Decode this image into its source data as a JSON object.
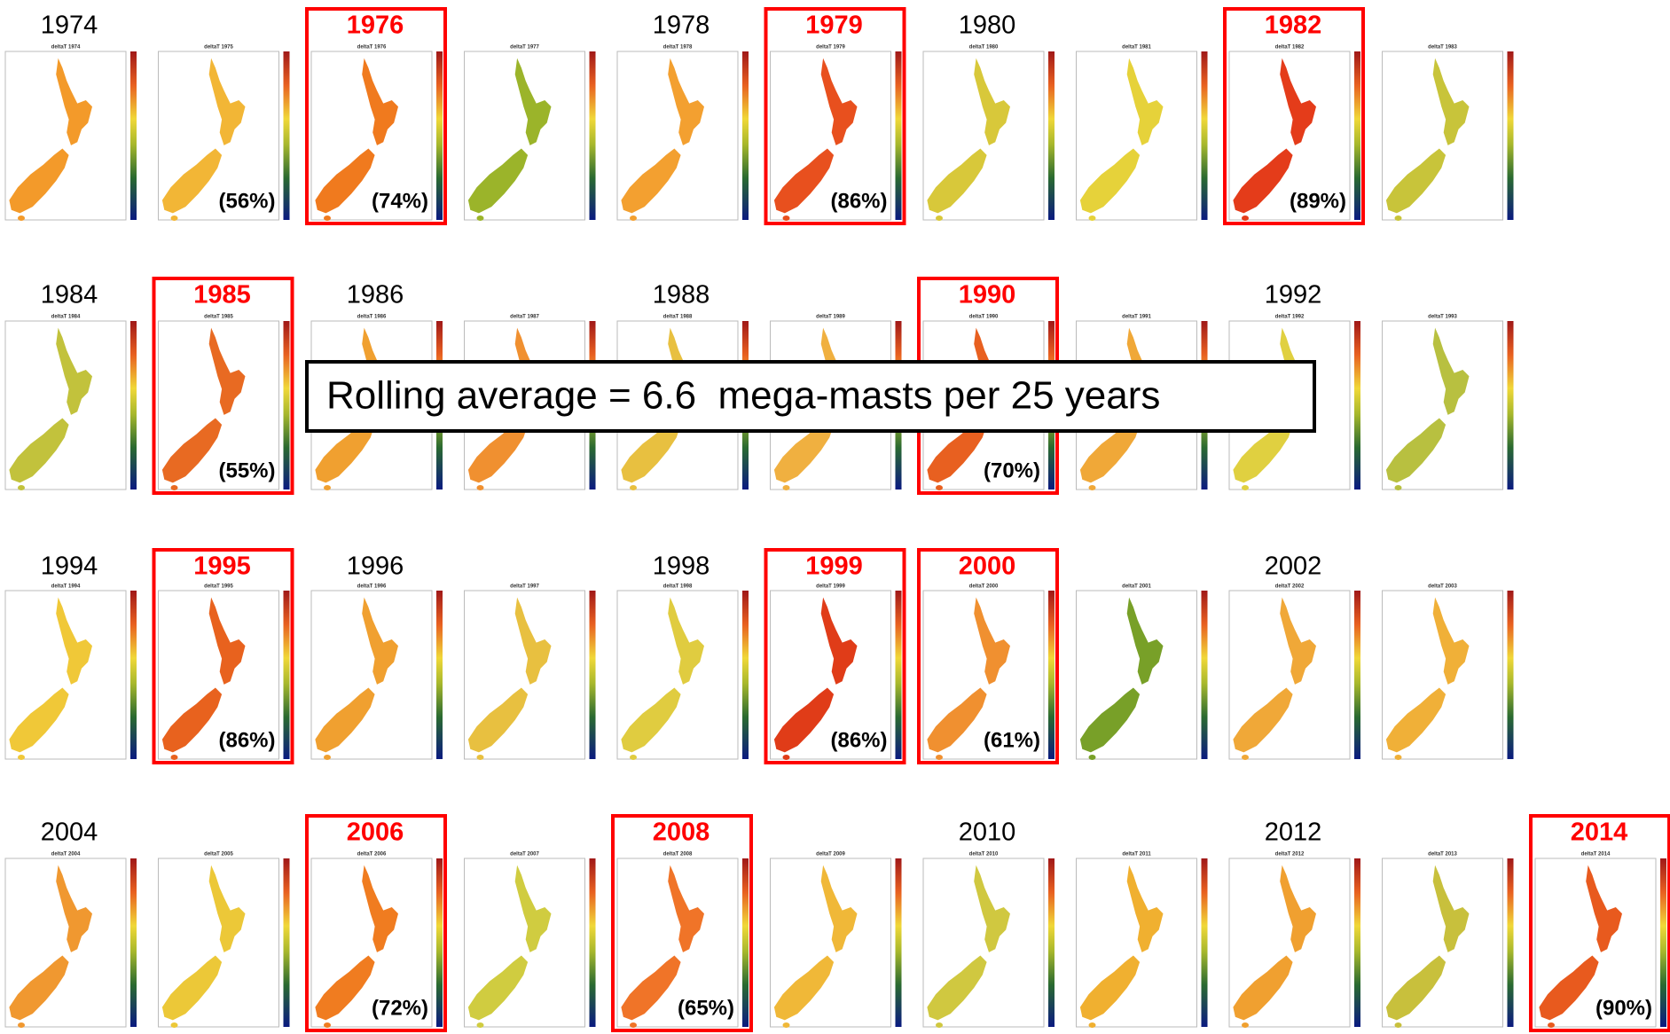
{
  "rows": [
    {
      "panels": [
        {
          "label": "1974",
          "subtitle": "deltaT 1974",
          "color": "#f39a2a"
        },
        {
          "subtitle": "deltaT 1975",
          "color": "#f2b636",
          "percent": "(56%)"
        },
        {
          "label": "1976",
          "highlighted": true,
          "subtitle": "deltaT 1976",
          "color": "#f07a1e",
          "percent": "(74%)"
        },
        {
          "subtitle": "deltaT 1977",
          "color": "#9bb42a"
        },
        {
          "label": "1978",
          "subtitle": "deltaT 1978",
          "color": "#f3a030"
        },
        {
          "label": "1979",
          "highlighted": true,
          "subtitle": "deltaT 1979",
          "color": "#e8501e",
          "percent": "(86%)"
        },
        {
          "label": "1980",
          "subtitle": "deltaT 1980",
          "color": "#d8c83a"
        },
        {
          "subtitle": "deltaT 1981",
          "color": "#e6d23a"
        },
        {
          "label": "1982",
          "highlighted": true,
          "subtitle": "deltaT 1982",
          "color": "#e43c1a",
          "percent": "(89%)"
        },
        {
          "subtitle": "deltaT 1983",
          "color": "#c8c43a"
        }
      ]
    },
    {
      "panels": [
        {
          "label": "1984",
          "subtitle": "deltaT 1984",
          "color": "#c2c23c"
        },
        {
          "label": "1985",
          "highlighted": true,
          "subtitle": "deltaT 1985",
          "color": "#e86a22",
          "percent": "(55%)"
        },
        {
          "label": "1986",
          "subtitle": "deltaT 1986",
          "color": "#f0a030"
        },
        {
          "subtitle": "deltaT 1987",
          "color": "#f09030"
        },
        {
          "label": "1988",
          "subtitle": "deltaT 1988",
          "color": "#e8c040"
        },
        {
          "subtitle": "deltaT 1989",
          "color": "#f0b040"
        },
        {
          "label": "1990",
          "highlighted": true,
          "subtitle": "deltaT 1990",
          "color": "#e86020",
          "percent": "(70%)"
        },
        {
          "subtitle": "deltaT 1991",
          "color": "#f0a838"
        },
        {
          "label": "1992",
          "subtitle": "deltaT 1992",
          "color": "#e0d040"
        },
        {
          "subtitle": "deltaT 1993",
          "color": "#b8c040"
        }
      ]
    },
    {
      "panels": [
        {
          "label": "1994",
          "subtitle": "deltaT 1994",
          "color": "#f0c838"
        },
        {
          "label": "1995",
          "highlighted": true,
          "subtitle": "deltaT 1995",
          "color": "#e8621e",
          "percent": "(86%)"
        },
        {
          "label": "1996",
          "subtitle": "deltaT 1996",
          "color": "#f0a030"
        },
        {
          "subtitle": "deltaT 1997",
          "color": "#e8c040"
        },
        {
          "label": "1998",
          "subtitle": "deltaT 1998",
          "color": "#e0cc40"
        },
        {
          "label": "1999",
          "highlighted": true,
          "subtitle": "deltaT 1999",
          "color": "#e03c18",
          "percent": "(86%)"
        },
        {
          "label": "2000",
          "highlighted": true,
          "subtitle": "deltaT 2000",
          "color": "#f09030",
          "percent": "(61%)"
        },
        {
          "subtitle": "deltaT 2001",
          "color": "#78a028"
        },
        {
          "label": "2002",
          "subtitle": "deltaT 2002",
          "color": "#f0a838"
        },
        {
          "subtitle": "deltaT 2003",
          "color": "#f0b038"
        }
      ]
    },
    {
      "panels": [
        {
          "label": "2004",
          "subtitle": "deltaT 2004",
          "color": "#f09830"
        },
        {
          "subtitle": "deltaT 2005",
          "color": "#ecc838"
        },
        {
          "label": "2006",
          "highlighted": true,
          "subtitle": "deltaT 2006",
          "color": "#f07c20",
          "percent": "(72%)"
        },
        {
          "subtitle": "deltaT 2007",
          "color": "#d0cc40"
        },
        {
          "label": "2008",
          "highlighted": true,
          "subtitle": "deltaT 2008",
          "color": "#f07428",
          "percent": "(65%)"
        },
        {
          "subtitle": "deltaT 2009",
          "color": "#f0b838"
        },
        {
          "label": "2010",
          "subtitle": "deltaT 2010",
          "color": "#d0c840"
        },
        {
          "subtitle": "deltaT 2011",
          "color": "#f0b030"
        },
        {
          "label": "2012",
          "subtitle": "deltaT 2012",
          "color": "#f0a030"
        },
        {
          "subtitle": "deltaT 2013",
          "color": "#c8c03c"
        },
        {
          "label": "2014",
          "highlighted": true,
          "subtitle": "deltaT 2014",
          "color": "#e85a1e",
          "percent": "(90%)"
        }
      ]
    }
  ],
  "overlay": {
    "text": "Rolling average = 6.6  mega-masts per 25 years"
  }
}
